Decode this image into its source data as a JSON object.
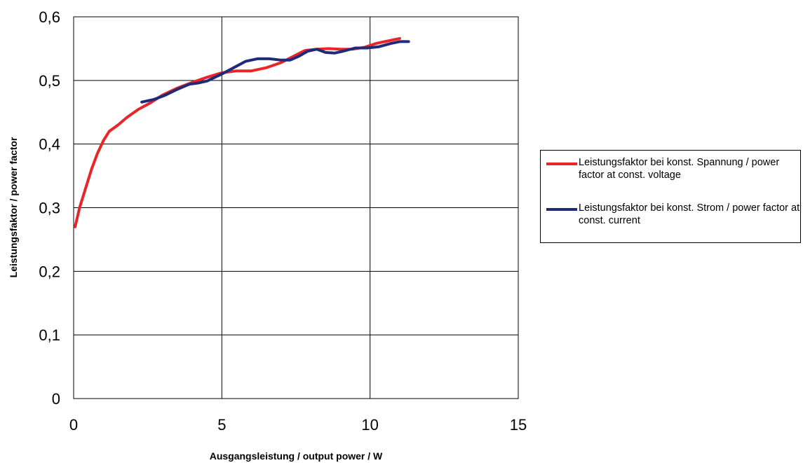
{
  "chart_data": {
    "type": "line",
    "title": "",
    "xlabel": "Ausgangsleistung / output power / W",
    "ylabel": "Leistungsfaktor / power factor",
    "xlim": [
      0,
      15
    ],
    "ylim": [
      0,
      0.6
    ],
    "x_ticks": [
      0,
      5,
      10,
      15
    ],
    "x_tick_labels": [
      "0",
      "5",
      "10",
      "15"
    ],
    "y_ticks": [
      0,
      0.1,
      0.2,
      0.3,
      0.4,
      0.5,
      0.6
    ],
    "y_tick_labels": [
      "0",
      "0,1",
      "0,2",
      "0,3",
      "0,4",
      "0,5",
      "0,6"
    ],
    "grid": true,
    "legend_position": "right",
    "series": [
      {
        "name": "Leistungsfaktor bei konst. Spannung / power factor at const. voltage",
        "color": "#e8262a",
        "points": [
          [
            0.05,
            0.27
          ],
          [
            0.2,
            0.3
          ],
          [
            0.4,
            0.33
          ],
          [
            0.6,
            0.36
          ],
          [
            0.8,
            0.385
          ],
          [
            1.0,
            0.405
          ],
          [
            1.2,
            0.42
          ],
          [
            1.5,
            0.43
          ],
          [
            1.8,
            0.442
          ],
          [
            2.2,
            0.455
          ],
          [
            2.6,
            0.465
          ],
          [
            3.0,
            0.477
          ],
          [
            3.5,
            0.488
          ],
          [
            4.0,
            0.497
          ],
          [
            4.5,
            0.505
          ],
          [
            5.0,
            0.512
          ],
          [
            5.5,
            0.515
          ],
          [
            6.0,
            0.515
          ],
          [
            6.5,
            0.52
          ],
          [
            7.0,
            0.528
          ],
          [
            7.5,
            0.54
          ],
          [
            7.8,
            0.547
          ],
          [
            8.2,
            0.549
          ],
          [
            8.6,
            0.55
          ],
          [
            9.0,
            0.549
          ],
          [
            9.4,
            0.549
          ],
          [
            9.8,
            0.552
          ],
          [
            10.2,
            0.558
          ],
          [
            10.6,
            0.562
          ],
          [
            11.0,
            0.566
          ]
        ]
      },
      {
        "name": "Leistungsfaktor bei konst. Strom / power factor at const. current",
        "color": "#1f2a78",
        "points": [
          [
            2.3,
            0.466
          ],
          [
            2.7,
            0.47
          ],
          [
            3.1,
            0.477
          ],
          [
            3.5,
            0.486
          ],
          [
            3.9,
            0.494
          ],
          [
            4.2,
            0.496
          ],
          [
            4.5,
            0.499
          ],
          [
            5.0,
            0.51
          ],
          [
            5.4,
            0.52
          ],
          [
            5.8,
            0.53
          ],
          [
            6.2,
            0.534
          ],
          [
            6.6,
            0.534
          ],
          [
            7.0,
            0.532
          ],
          [
            7.3,
            0.532
          ],
          [
            7.6,
            0.538
          ],
          [
            7.9,
            0.546
          ],
          [
            8.2,
            0.549
          ],
          [
            8.5,
            0.544
          ],
          [
            8.8,
            0.543
          ],
          [
            9.1,
            0.546
          ],
          [
            9.5,
            0.551
          ],
          [
            9.9,
            0.551
          ],
          [
            10.3,
            0.553
          ],
          [
            10.7,
            0.558
          ],
          [
            11.0,
            0.561
          ],
          [
            11.3,
            0.561
          ]
        ]
      }
    ]
  }
}
